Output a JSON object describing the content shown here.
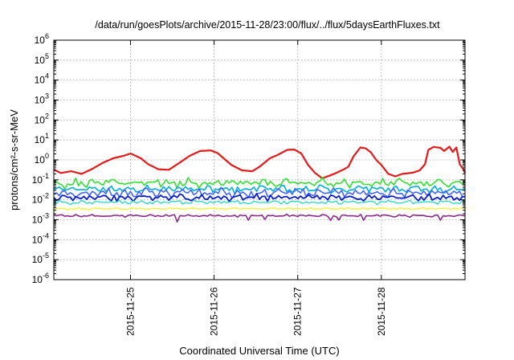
{
  "chart_data": {
    "type": "line",
    "title": "/data/run/goesPlots/archive/2015-11-28/23:00/flux/../flux/5daysEarthFluxes.txt",
    "xlabel": "Coordinated Universal Time (UTC)",
    "ylabel": "protons/cm²-s-sr-MeV",
    "yscale": "log",
    "ylim": [
      1e-06,
      1000000.0
    ],
    "yticks": [
      {
        "value": 1e-06,
        "base": "10",
        "exp": "-6"
      },
      {
        "value": 1e-05,
        "base": "10",
        "exp": "-5"
      },
      {
        "value": 0.0001,
        "base": "10",
        "exp": "-4"
      },
      {
        "value": 0.001,
        "base": "10",
        "exp": "-3"
      },
      {
        "value": 0.01,
        "base": "10",
        "exp": "-2"
      },
      {
        "value": 0.1,
        "base": "10",
        "exp": "-1"
      },
      {
        "value": 1,
        "base": "10",
        "exp": "0"
      },
      {
        "value": 10,
        "base": "10",
        "exp": "1"
      },
      {
        "value": 100,
        "base": "10",
        "exp": "2"
      },
      {
        "value": 1000,
        "base": "10",
        "exp": "3"
      },
      {
        "value": 10000,
        "base": "10",
        "exp": "4"
      },
      {
        "value": 100000,
        "base": "10",
        "exp": "5"
      },
      {
        "value": 1000000,
        "base": "10",
        "exp": "6"
      }
    ],
    "xlim": [
      "2015-11-24T02:00",
      "2015-11-29T00:00"
    ],
    "xticks": [
      "2015-11-25",
      "2015-11-26",
      "2015-11-27",
      "2015-11-28"
    ],
    "grid": true,
    "series": [
      {
        "color": "#e41a1c",
        "width": 2.2,
        "points": [
          [
            "2015-11-24T02:00",
            0.33
          ],
          [
            "2015-11-24T04:00",
            0.22
          ],
          [
            "2015-11-24T07:00",
            0.27
          ],
          [
            "2015-11-24T10:00",
            0.2
          ],
          [
            "2015-11-24T13:00",
            0.35
          ],
          [
            "2015-11-24T16:00",
            0.7
          ],
          [
            "2015-11-24T19:00",
            1.2
          ],
          [
            "2015-11-24T22:00",
            1.6
          ],
          [
            "2015-11-25T00:00",
            2.1
          ],
          [
            "2015-11-25T03:00",
            1.2
          ],
          [
            "2015-11-25T05:00",
            0.62
          ],
          [
            "2015-11-25T08:00",
            0.34
          ],
          [
            "2015-11-25T11:00",
            0.32
          ],
          [
            "2015-11-25T14:00",
            0.7
          ],
          [
            "2015-11-25T17:00",
            1.6
          ],
          [
            "2015-11-25T20:00",
            2.8
          ],
          [
            "2015-11-25T23:00",
            3.0
          ],
          [
            "2015-11-26T01:00",
            2.2
          ],
          [
            "2015-11-26T03:00",
            1.1
          ],
          [
            "2015-11-26T05:00",
            0.55
          ],
          [
            "2015-11-26T08:00",
            0.3
          ],
          [
            "2015-11-26T11:00",
            0.27
          ],
          [
            "2015-11-26T13:00",
            0.45
          ],
          [
            "2015-11-26T16:00",
            1.2
          ],
          [
            "2015-11-26T18:00",
            1.7
          ],
          [
            "2015-11-26T21:00",
            3.2
          ],
          [
            "2015-11-26T23:00",
            3.3
          ],
          [
            "2015-11-27T01:00",
            2.1
          ],
          [
            "2015-11-27T03:00",
            0.55
          ],
          [
            "2015-11-27T05:00",
            0.22
          ],
          [
            "2015-11-27T07:00",
            0.12
          ],
          [
            "2015-11-27T09:00",
            0.16
          ],
          [
            "2015-11-27T11:00",
            0.22
          ],
          [
            "2015-11-27T13:00",
            0.32
          ],
          [
            "2015-11-27T14:30",
            0.45
          ],
          [
            "2015-11-27T16:00",
            1.5
          ],
          [
            "2015-11-27T18:00",
            4.2
          ],
          [
            "2015-11-27T19:30",
            3.8
          ],
          [
            "2015-11-27T21:00",
            2.4
          ],
          [
            "2015-11-27T22:30",
            1.0
          ],
          [
            "2015-11-28T00:00",
            0.55
          ],
          [
            "2015-11-28T02:00",
            0.2
          ],
          [
            "2015-11-28T04:00",
            0.15
          ],
          [
            "2015-11-28T06:00",
            0.2
          ],
          [
            "2015-11-28T09:00",
            0.23
          ],
          [
            "2015-11-28T11:00",
            0.3
          ],
          [
            "2015-11-28T12:30",
            0.6
          ],
          [
            "2015-11-28T13:30",
            3.2
          ],
          [
            "2015-11-28T15:00",
            4.5
          ],
          [
            "2015-11-28T17:00",
            4.0
          ],
          [
            "2015-11-28T18:00",
            2.8
          ],
          [
            "2015-11-28T19:30",
            4.6
          ],
          [
            "2015-11-28T20:30",
            2.5
          ],
          [
            "2015-11-28T21:30",
            4.2
          ],
          [
            "2015-11-28T22:30",
            0.6
          ],
          [
            "2015-11-28T23:30",
            0.35
          ],
          [
            "2015-11-29T00:00",
            0.22
          ]
        ]
      },
      {
        "color": "#33e033",
        "width": 1.6,
        "level": 0.07,
        "amplitude": 1.7
      },
      {
        "color": "#00b0d8",
        "width": 1.6,
        "level": 0.035,
        "amplitude": 1.6
      },
      {
        "color": "#4466ff",
        "width": 1.6,
        "level": 0.022,
        "amplitude": 1.7
      },
      {
        "color": "#0a1ecc",
        "width": 1.8,
        "level": 0.013,
        "amplitude": 1.5
      },
      {
        "color": "#14d8c0",
        "width": 1.2,
        "level": 0.0075,
        "amplitude": 1.25
      },
      {
        "color": "#f2f24a",
        "width": 1.6,
        "level": 0.0036,
        "amplitude": 1.12
      },
      {
        "color": "#8b2a8b",
        "width": 1.6,
        "level": 0.0016,
        "amplitude": 1.15
      }
    ]
  }
}
